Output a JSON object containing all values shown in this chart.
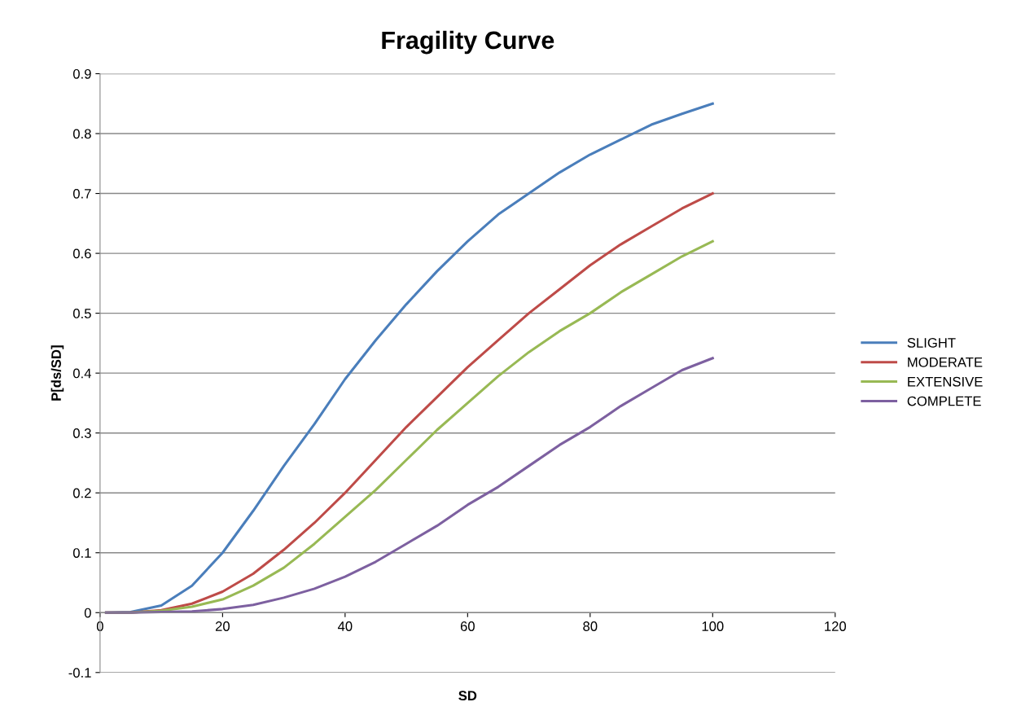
{
  "chart_data": {
    "type": "line",
    "title": "Fragility Curve",
    "xlabel": "SD",
    "ylabel": "P[ds/SD]",
    "x": [
      1,
      5,
      10,
      15,
      20,
      25,
      30,
      35,
      40,
      45,
      50,
      55,
      60,
      65,
      70,
      75,
      80,
      85,
      90,
      95,
      100
    ],
    "series": [
      {
        "name": "SLIGHT",
        "color": "#4a7ebb",
        "values": [
          0,
          0.001,
          0.012,
          0.045,
          0.1,
          0.17,
          0.245,
          0.315,
          0.39,
          0.455,
          0.515,
          0.57,
          0.62,
          0.665,
          0.7,
          0.735,
          0.765,
          0.79,
          0.815,
          0.833,
          0.85
        ]
      },
      {
        "name": "MODERATE",
        "color": "#be4b48",
        "values": [
          0,
          0,
          0.004,
          0.015,
          0.035,
          0.065,
          0.105,
          0.15,
          0.2,
          0.255,
          0.31,
          0.36,
          0.41,
          0.455,
          0.5,
          0.54,
          0.58,
          0.615,
          0.645,
          0.675,
          0.7
        ]
      },
      {
        "name": "EXTENSIVE",
        "color": "#98b954",
        "values": [
          0,
          0,
          0.003,
          0.01,
          0.022,
          0.045,
          0.075,
          0.115,
          0.16,
          0.205,
          0.255,
          0.305,
          0.35,
          0.395,
          0.435,
          0.47,
          0.5,
          0.535,
          0.565,
          0.595,
          0.62
        ]
      },
      {
        "name": "COMPLETE",
        "color": "#7d60a0",
        "values": [
          0,
          0,
          0.001,
          0.002,
          0.006,
          0.013,
          0.025,
          0.04,
          0.06,
          0.085,
          0.115,
          0.145,
          0.18,
          0.21,
          0.245,
          0.28,
          0.31,
          0.345,
          0.375,
          0.405,
          0.425
        ]
      }
    ],
    "xlim": [
      0,
      120
    ],
    "xticks": [
      0,
      20,
      40,
      60,
      80,
      100,
      120
    ],
    "ylim": [
      -0.1,
      0.9
    ],
    "yticks": [
      -0.1,
      0,
      0.1,
      0.2,
      0.3,
      0.4,
      0.5,
      0.6,
      0.7,
      0.8,
      0.9
    ],
    "grid": "y",
    "legend": "right",
    "marker": "none",
    "line_style": "solid"
  }
}
